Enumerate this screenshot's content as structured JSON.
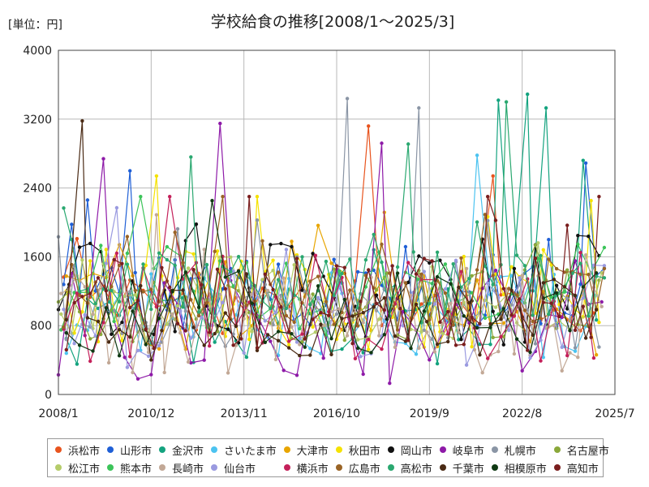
{
  "chart_data": {
    "type": "line",
    "title": "学校給食の推移[2008/1～2025/3]",
    "unit_label": "[単位：円]",
    "x_tick_labels": [
      "2008/1",
      "2010/12",
      "2013/11",
      "2016/10",
      "2019/9",
      "2022/8",
      "2025/7"
    ],
    "x_range": [
      "2008-01",
      "2025-07"
    ],
    "y_tick_labels": [
      "0",
      "800",
      "1600",
      "2400",
      "3200",
      "4000"
    ],
    "ylim": [
      0,
      4000
    ],
    "grid": true,
    "legend_position": "bottom",
    "series": [
      {
        "name": "浜松市",
        "color": "#e8541e"
      },
      {
        "name": "山形市",
        "color": "#1f5fd6"
      },
      {
        "name": "金沢市",
        "color": "#14a37f"
      },
      {
        "name": "さいたま市",
        "color": "#4cc3f0"
      },
      {
        "name": "大津市",
        "color": "#e8a500"
      },
      {
        "name": "秋田市",
        "color": "#f5e200"
      },
      {
        "name": "岡山市",
        "color": "#111111"
      },
      {
        "name": "岐阜市",
        "color": "#8e1aa8"
      },
      {
        "name": "札幌市",
        "color": "#8a95a5"
      },
      {
        "name": "名古屋市",
        "color": "#8aa83a"
      },
      {
        "name": "松江市",
        "color": "#b5cc6a"
      },
      {
        "name": "熊本市",
        "color": "#3cc45a"
      },
      {
        "name": "長崎市",
        "color": "#c2a896"
      },
      {
        "name": "仙台市",
        "color": "#9a9ae0"
      },
      {
        "name": "横浜市",
        "color": "#c4205a"
      },
      {
        "name": "広島市",
        "color": "#9a6426"
      },
      {
        "name": "高松市",
        "color": "#2aa870"
      },
      {
        "name": "千葉市",
        "color": "#4a2a14"
      },
      {
        "name": "相模原市",
        "color": "#103a14"
      },
      {
        "name": "高知市",
        "color": "#7a1e1e"
      }
    ],
    "peaks": [
      {
        "series": "千葉市",
        "x": "2008-10",
        "y": 3180
      },
      {
        "series": "岐阜市",
        "x": "2013-02",
        "y": 3150
      },
      {
        "series": "浜松市",
        "x": "2017-10",
        "y": 3120
      },
      {
        "series": "札幌市",
        "x": "2017-02",
        "y": 3440
      },
      {
        "series": "札幌市",
        "x": "2019-05",
        "y": 3330
      },
      {
        "series": "金沢市",
        "x": "2022-10",
        "y": 3490
      },
      {
        "series": "金沢市",
        "x": "2021-11",
        "y": 3420
      },
      {
        "series": "高松市",
        "x": "2022-02",
        "y": 3400
      },
      {
        "series": "金沢市",
        "x": "2023-05",
        "y": 3330
      },
      {
        "series": "さいたま市",
        "x": "2021-03",
        "y": 2780
      },
      {
        "series": "岐阜市",
        "x": "2018-03",
        "y": 2920
      },
      {
        "series": "高松市",
        "x": "2019-01",
        "y": 2910
      },
      {
        "series": "浜松市",
        "x": "2021-09",
        "y": 2540
      },
      {
        "series": "山形市",
        "x": "2010-04",
        "y": 2600
      },
      {
        "series": "岐阜市",
        "x": "2009-06",
        "y": 2740
      },
      {
        "series": "高松市",
        "x": "2012-03",
        "y": 2760
      },
      {
        "series": "山形市",
        "x": "2024-08",
        "y": 2690
      },
      {
        "series": "金沢市",
        "x": "2024-07",
        "y": 2720
      },
      {
        "series": "秋田市",
        "x": "2011-02",
        "y": 2540
      }
    ]
  }
}
